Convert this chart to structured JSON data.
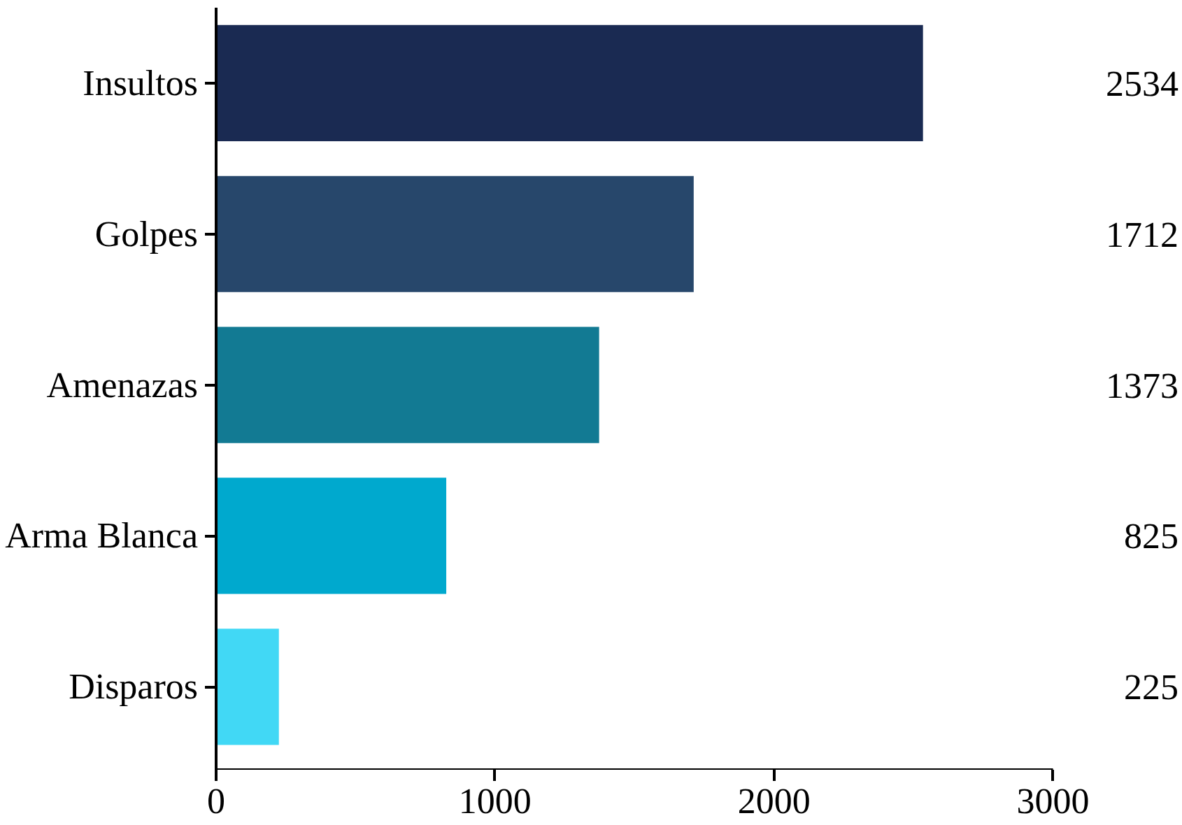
{
  "chart_data": {
    "type": "bar",
    "orientation": "horizontal",
    "categories": [
      "Insultos",
      "Golpes",
      "Amenazas",
      "Arma Blanca",
      "Disparos"
    ],
    "values": [
      2534,
      1712,
      1373,
      825,
      225
    ],
    "colors": [
      "#1a2a52",
      "#27476b",
      "#127a93",
      "#00a9ce",
      "#41d8f5"
    ],
    "xlim": [
      0,
      3000
    ],
    "xticks": [
      0,
      1000,
      2000,
      3000
    ],
    "data_labels": true,
    "grid": false
  }
}
